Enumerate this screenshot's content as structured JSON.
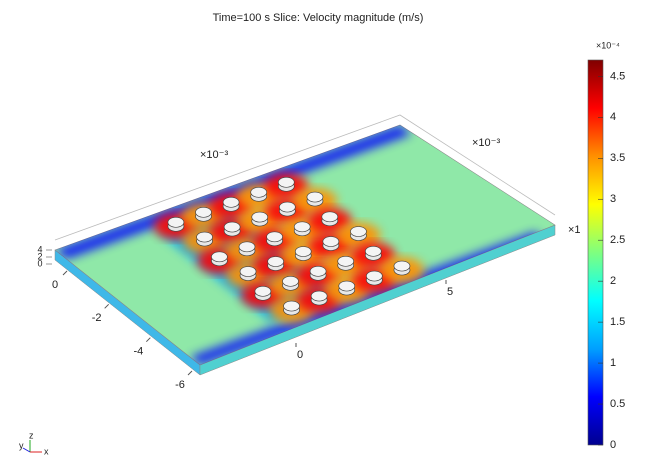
{
  "chart_data": {
    "type": "surface",
    "title": "Time=100 s   Slice: Velocity magnitude (m/s)",
    "colorbar": {
      "multiplier": "×10⁻⁴",
      "lim": [
        0,
        4.7
      ],
      "ticks": [
        0,
        0.5,
        1,
        1.5,
        2,
        2.5,
        3,
        3.5,
        4,
        4.5
      ],
      "colors": [
        "#00008f",
        "#0000ff",
        "#00a0ff",
        "#00ffff",
        "#7fff7f",
        "#ffff00",
        "#ff9000",
        "#ff0000",
        "#800000"
      ]
    },
    "axes": {
      "x": {
        "multiplier": "×10⁻³",
        "ticks": [
          0,
          5
        ]
      },
      "y": {
        "multiplier": "×10⁻³",
        "ticks": [
          0,
          -2,
          -4,
          -6
        ]
      },
      "z": {
        "multiplier": "×1",
        "ticks": [
          4,
          2,
          0
        ]
      }
    },
    "triad": [
      "y",
      "z",
      "x"
    ]
  }
}
